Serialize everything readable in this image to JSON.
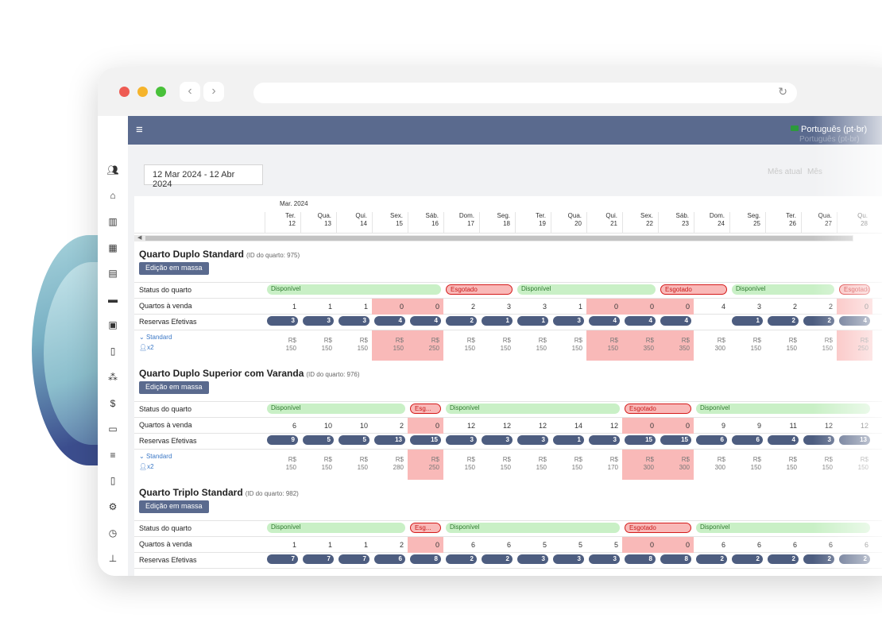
{
  "app": {
    "language": "Português (pt-br)",
    "language_shadow": "Português (pt-br)",
    "date_range": "12 Mar 2024 - 12 Abr 2024",
    "ghost_a": "Mês atual",
    "ghost_b": "Mês"
  },
  "calendar": {
    "month_label": "Mar. 2024",
    "days": [
      [
        "Ter.",
        "12"
      ],
      [
        "Qua.",
        "13"
      ],
      [
        "Qui.",
        "14"
      ],
      [
        "Sex.",
        "15"
      ],
      [
        "Sáb.",
        "16"
      ],
      [
        "Dom.",
        "17"
      ],
      [
        "Seg.",
        "18"
      ],
      [
        "Ter.",
        "19"
      ],
      [
        "Qua.",
        "20"
      ],
      [
        "Qui.",
        "21"
      ],
      [
        "Sex.",
        "22"
      ],
      [
        "Sáb.",
        "23"
      ],
      [
        "Dom.",
        "24"
      ],
      [
        "Seg.",
        "25"
      ],
      [
        "Ter.",
        "26"
      ],
      [
        "Qua.",
        "27"
      ],
      [
        "Qu.",
        "28"
      ]
    ]
  },
  "labels": {
    "status": "Status do quarto",
    "for_sale": "Quartos à venda",
    "reservations": "Reservas Efetivas",
    "bulk_edit": "Edição em massa",
    "rate_plan": "Standard",
    "guests": "x2",
    "currency": "R$",
    "available": "Disponível",
    "sold_out": "Esgotado",
    "sold_out_short": "Esg..."
  },
  "rooms": [
    {
      "name": "Quarto Duplo Standard",
      "id_label": "(ID do quarto: 975)",
      "status": [
        [
          "av",
          0,
          5
        ],
        [
          "so",
          5,
          7
        ],
        [
          "av",
          7,
          11
        ],
        [
          "so",
          11,
          13
        ],
        [
          "av",
          13,
          16
        ],
        [
          "so",
          16,
          17
        ]
      ],
      "for_sale": [
        "1",
        "1",
        "1",
        "0",
        "0",
        "2",
        "3",
        "3",
        "1",
        "0",
        "0",
        "0",
        "4",
        "3",
        "2",
        "2",
        "0"
      ],
      "reservations": [
        "3",
        "3",
        "3",
        "4",
        "4",
        "2",
        "1",
        "1",
        "3",
        "4",
        "4",
        "4",
        "",
        "1",
        "2",
        "2",
        "4"
      ],
      "prices": [
        "150",
        "150",
        "150",
        "150",
        "250",
        "150",
        "150",
        "150",
        "150",
        "150",
        "350",
        "350",
        "300",
        "150",
        "150",
        "150",
        "250"
      ],
      "red": [
        3,
        4,
        9,
        10,
        11,
        16
      ]
    },
    {
      "name": "Quarto Duplo Superior com Varanda",
      "id_label": "(ID do quarto: 976)",
      "status": [
        [
          "av",
          0,
          4
        ],
        [
          "so_s",
          4,
          5
        ],
        [
          "av",
          5,
          10
        ],
        [
          "so",
          10,
          12
        ],
        [
          "av",
          12,
          17
        ]
      ],
      "for_sale": [
        "6",
        "10",
        "10",
        "2",
        "0",
        "12",
        "12",
        "12",
        "14",
        "12",
        "0",
        "0",
        "9",
        "9",
        "11",
        "12",
        "12"
      ],
      "reservations": [
        "9",
        "5",
        "5",
        "13",
        "15",
        "3",
        "3",
        "3",
        "1",
        "3",
        "15",
        "15",
        "6",
        "6",
        "4",
        "3",
        "13"
      ],
      "prices": [
        "150",
        "150",
        "150",
        "280",
        "250",
        "150",
        "150",
        "150",
        "150",
        "170",
        "300",
        "300",
        "300",
        "150",
        "150",
        "150",
        "150"
      ],
      "red": [
        4,
        10,
        11
      ]
    },
    {
      "name": "Quarto Triplo Standard",
      "id_label": "(ID do quarto: 982)",
      "status": [
        [
          "av",
          0,
          4
        ],
        [
          "so_s",
          4,
          5
        ],
        [
          "av",
          5,
          10
        ],
        [
          "so",
          10,
          12
        ],
        [
          "av",
          12,
          17
        ]
      ],
      "for_sale": [
        "1",
        "1",
        "1",
        "2",
        "0",
        "6",
        "6",
        "5",
        "5",
        "5",
        "0",
        "0",
        "6",
        "6",
        "6",
        "6",
        "6"
      ],
      "reservations": [
        "7",
        "7",
        "7",
        "6",
        "8",
        "2",
        "2",
        "3",
        "3",
        "3",
        "8",
        "8",
        "2",
        "2",
        "2",
        "2",
        "2"
      ],
      "prices": [
        "",
        "",
        "",
        "",
        "",
        "",
        "",
        "",
        "",
        "",
        "",
        "",
        "",
        "",
        "",
        "",
        ""
      ],
      "red": [
        4,
        10,
        11
      ]
    }
  ],
  "colors": {
    "nav": "#5a6a8e",
    "available": "#c9f0c6",
    "sold_out": "#f9b9b8",
    "pill": "#4d5d80"
  }
}
